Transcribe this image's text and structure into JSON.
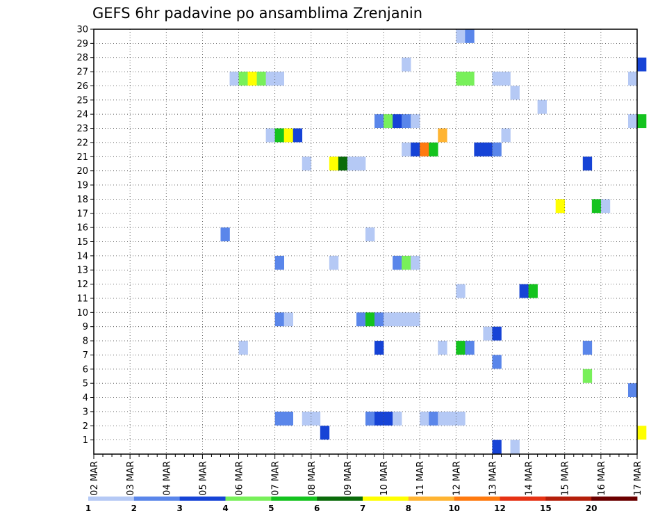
{
  "chart_data": {
    "type": "heatmap",
    "title": "GEFS 6hr padavine po ansamblima Zrenjanin",
    "xlabel": "",
    "ylabel": "",
    "x_tick_labels": [
      "02 MAR",
      "03 MAR",
      "04 MAR",
      "05 MAR",
      "06 MAR",
      "07 MAR",
      "08 MAR",
      "09 MAR",
      "10 MAR",
      "11 MAR",
      "12 MAR",
      "13 MAR",
      "14 MAR",
      "15 MAR",
      "16 MAR",
      "17 MAR"
    ],
    "x_range": [
      "02 MAR 00Z",
      "17 MAR 00Z"
    ],
    "x_step_hours": 6,
    "y_tick_labels": [
      "1",
      "2",
      "3",
      "4",
      "5",
      "6",
      "7",
      "8",
      "9",
      "10",
      "11",
      "12",
      "13",
      "14",
      "15",
      "16",
      "17",
      "18",
      "19",
      "20",
      "21",
      "22",
      "23",
      "24",
      "25",
      "26",
      "27",
      "28",
      "29",
      "30"
    ],
    "y_range": [
      0,
      30
    ],
    "grid": true,
    "legend": {
      "placement": "bottom",
      "colors": [
        "#b5c9f5",
        "#5a86ea",
        "#1643d6",
        "#78f05a",
        "#14c31e",
        "#0a6b0a",
        "#ffff00",
        "#ffb432",
        "#ff7a0f",
        "#e63214",
        "#b41e0a",
        "#6b0000"
      ],
      "labels": [
        "1",
        "2",
        "3",
        "4",
        "5",
        "6",
        "7",
        "8",
        "10",
        "12",
        "15",
        "20"
      ]
    },
    "cells": [
      {
        "member": 30,
        "x": 40,
        "c": 1
      },
      {
        "member": 30,
        "x": 41,
        "c": 2
      },
      {
        "member": 28,
        "x": 34,
        "c": 1
      },
      {
        "member": 28,
        "x": 60,
        "c": 3
      },
      {
        "member": 27,
        "x": 15,
        "c": 1
      },
      {
        "member": 27,
        "x": 16,
        "c": 4
      },
      {
        "member": 27,
        "x": 17,
        "c": 7
      },
      {
        "member": 27,
        "x": 18,
        "c": 4
      },
      {
        "member": 27,
        "x": 19,
        "c": 1
      },
      {
        "member": 27,
        "x": 20,
        "c": 1
      },
      {
        "member": 27,
        "x": 40,
        "c": 4
      },
      {
        "member": 27,
        "x": 41,
        "c": 4
      },
      {
        "member": 27,
        "x": 44,
        "c": 1
      },
      {
        "member": 27,
        "x": 45,
        "c": 1
      },
      {
        "member": 27,
        "x": 59,
        "c": 1
      },
      {
        "member": 26,
        "x": 46,
        "c": 1
      },
      {
        "member": 25,
        "x": 49,
        "c": 1
      },
      {
        "member": 24,
        "x": 31,
        "c": 2
      },
      {
        "member": 24,
        "x": 32,
        "c": 4
      },
      {
        "member": 24,
        "x": 33,
        "c": 3
      },
      {
        "member": 24,
        "x": 34,
        "c": 2
      },
      {
        "member": 24,
        "x": 35,
        "c": 1
      },
      {
        "member": 24,
        "x": 59,
        "c": 1
      },
      {
        "member": 24,
        "x": 60,
        "c": 5
      },
      {
        "member": 23,
        "x": 19,
        "c": 1
      },
      {
        "member": 23,
        "x": 20,
        "c": 5
      },
      {
        "member": 23,
        "x": 21,
        "c": 7
      },
      {
        "member": 23,
        "x": 22,
        "c": 3
      },
      {
        "member": 23,
        "x": 38,
        "c": 8
      },
      {
        "member": 23,
        "x": 45,
        "c": 1
      },
      {
        "member": 22,
        "x": 34,
        "c": 1
      },
      {
        "member": 22,
        "x": 35,
        "c": 3
      },
      {
        "member": 22,
        "x": 36,
        "c": 9
      },
      {
        "member": 22,
        "x": 37,
        "c": 5
      },
      {
        "member": 22,
        "x": 42,
        "c": 3
      },
      {
        "member": 22,
        "x": 43,
        "c": 3
      },
      {
        "member": 22,
        "x": 44,
        "c": 2
      },
      {
        "member": 21,
        "x": 23,
        "c": 1
      },
      {
        "member": 21,
        "x": 26,
        "c": 7
      },
      {
        "member": 21,
        "x": 27,
        "c": 6
      },
      {
        "member": 21,
        "x": 28,
        "c": 1
      },
      {
        "member": 21,
        "x": 29,
        "c": 1
      },
      {
        "member": 21,
        "x": 54,
        "c": 3
      },
      {
        "member": 18,
        "x": 51,
        "c": 7
      },
      {
        "member": 18,
        "x": 55,
        "c": 5
      },
      {
        "member": 18,
        "x": 56,
        "c": 1
      },
      {
        "member": 16,
        "x": 14,
        "c": 2
      },
      {
        "member": 16,
        "x": 30,
        "c": 1
      },
      {
        "member": 14,
        "x": 20,
        "c": 2
      },
      {
        "member": 14,
        "x": 26,
        "c": 1
      },
      {
        "member": 14,
        "x": 33,
        "c": 2
      },
      {
        "member": 14,
        "x": 34,
        "c": 4
      },
      {
        "member": 14,
        "x": 35,
        "c": 1
      },
      {
        "member": 12,
        "x": 40,
        "c": 1
      },
      {
        "member": 12,
        "x": 47,
        "c": 3
      },
      {
        "member": 12,
        "x": 48,
        "c": 5
      },
      {
        "member": 10,
        "x": 20,
        "c": 2
      },
      {
        "member": 10,
        "x": 21,
        "c": 1
      },
      {
        "member": 10,
        "x": 29,
        "c": 2
      },
      {
        "member": 10,
        "x": 30,
        "c": 5
      },
      {
        "member": 10,
        "x": 31,
        "c": 2
      },
      {
        "member": 10,
        "x": 32,
        "c": 1
      },
      {
        "member": 10,
        "x": 33,
        "c": 1
      },
      {
        "member": 10,
        "x": 34,
        "c": 1
      },
      {
        "member": 10,
        "x": 35,
        "c": 1
      },
      {
        "member": 9,
        "x": 43,
        "c": 1
      },
      {
        "member": 9,
        "x": 44,
        "c": 3
      },
      {
        "member": 8,
        "x": 16,
        "c": 1
      },
      {
        "member": 8,
        "x": 31,
        "c": 3
      },
      {
        "member": 8,
        "x": 38,
        "c": 1
      },
      {
        "member": 8,
        "x": 40,
        "c": 5
      },
      {
        "member": 8,
        "x": 41,
        "c": 2
      },
      {
        "member": 8,
        "x": 54,
        "c": 2
      },
      {
        "member": 7,
        "x": 44,
        "c": 2
      },
      {
        "member": 6,
        "x": 54,
        "c": 4
      },
      {
        "member": 5,
        "x": 59,
        "c": 2
      },
      {
        "member": 3,
        "x": 20,
        "c": 2
      },
      {
        "member": 3,
        "x": 21,
        "c": 2
      },
      {
        "member": 3,
        "x": 23,
        "c": 1
      },
      {
        "member": 3,
        "x": 24,
        "c": 1
      },
      {
        "member": 3,
        "x": 30,
        "c": 2
      },
      {
        "member": 3,
        "x": 31,
        "c": 3
      },
      {
        "member": 3,
        "x": 32,
        "c": 3
      },
      {
        "member": 3,
        "x": 33,
        "c": 1
      },
      {
        "member": 3,
        "x": 36,
        "c": 1
      },
      {
        "member": 3,
        "x": 37,
        "c": 2
      },
      {
        "member": 3,
        "x": 38,
        "c": 1
      },
      {
        "member": 3,
        "x": 39,
        "c": 1
      },
      {
        "member": 3,
        "x": 40,
        "c": 1
      },
      {
        "member": 2,
        "x": 25,
        "c": 3
      },
      {
        "member": 2,
        "x": 60,
        "c": 7
      },
      {
        "member": 1,
        "x": 44,
        "c": 3
      },
      {
        "member": 1,
        "x": 46,
        "c": 1
      }
    ]
  }
}
